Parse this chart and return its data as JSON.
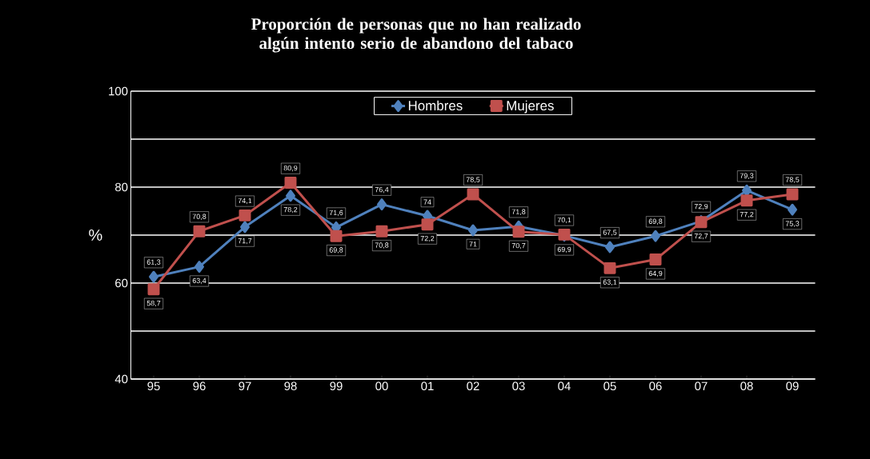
{
  "chart_data": {
    "type": "line",
    "title": "Proporción de personas que no han realizado algún intento serio de abandono del tabaco",
    "ylabel": "%",
    "categories": [
      "95",
      "96",
      "97",
      "98",
      "99",
      "00",
      "01",
      "02",
      "03",
      "04",
      "05",
      "06",
      "07",
      "08",
      "09"
    ],
    "series": [
      {
        "name": "Hombres",
        "color": "#4f81bd",
        "marker": "diamond",
        "values": [
          61.3,
          63.4,
          71.7,
          78.2,
          71.6,
          76.4,
          74,
          71,
          71.8,
          69.9,
          67.5,
          69.8,
          72.9,
          79.3,
          75.3
        ],
        "value_labels": [
          "61,3",
          "63,4",
          "71,7",
          "78,2",
          "71,6",
          "76,4",
          "74",
          "71",
          "71,8",
          "69,9",
          "67,5",
          "69,8",
          "72,9",
          "79,3",
          "75,3"
        ]
      },
      {
        "name": "Mujeres",
        "color": "#c0504d",
        "marker": "square",
        "values": [
          58.7,
          70.8,
          74.1,
          80.9,
          69.8,
          70.8,
          72.2,
          78.5,
          70.7,
          70.1,
          63.1,
          64.9,
          72.7,
          77.2,
          78.5
        ],
        "value_labels": [
          "58,7",
          "70,8",
          "74,1",
          "80,9",
          "69,8",
          "70,8",
          "72,2",
          "78,5",
          "70,7",
          "70,1",
          "63,1",
          "64,9",
          "72,7",
          "77,2",
          "78,5"
        ]
      }
    ],
    "ylim": [
      40,
      100
    ],
    "yticks": [
      40,
      {
        "value": 50,
        "label": null
      },
      60,
      {
        "value": 70,
        "label": null
      },
      80,
      {
        "value": 90,
        "label": null
      },
      100
    ],
    "grid": "y",
    "legend": "top",
    "line_style": "solid"
  }
}
